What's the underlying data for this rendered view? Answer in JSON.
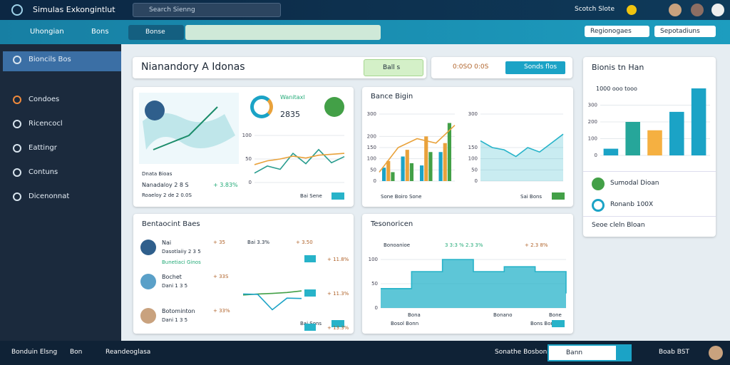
{
  "topbar": {
    "app": "Simulas Exkongintlut",
    "search": "Search Sienng",
    "user": "Scotch Slote"
  },
  "toolbar": {
    "menu": "Uhongian",
    "item": "Bons",
    "tab": "Bonse",
    "buttons": [
      "Regionogaes",
      "Sepotadiuns"
    ]
  },
  "sidebar": {
    "items": [
      "Bioncils Bos",
      "Condoes",
      "Ricencocl",
      "Eattingr",
      "Contuns",
      "Dicenonnat"
    ]
  },
  "header": {
    "title": "Nianandory A Idonas",
    "filter": "Ball s",
    "range": "0:0SO 0:0S",
    "action": "Sonds flos"
  },
  "cards": [
    {
      "title": "Wanitaxl",
      "value": "2835",
      "stat_label": "Dnata Bioas",
      "stat_name": "Nanadaloy 2 8 S",
      "stat_change": "+ 3.83%",
      "stat_sub": "Roaeloy 2 de 2 0.0S",
      "legend": "Bai Sene",
      "chart": {
        "type": "line",
        "ylim": [
          0,
          100
        ],
        "yticks": [
          0,
          50,
          100
        ],
        "series": [
          {
            "color": "#2a9d8f",
            "values": [
              20,
              35,
              28,
              62,
              40,
              70,
              42,
              55
            ]
          },
          {
            "color": "#e9a23b",
            "values": [
              38,
              46,
              50,
              56,
              52,
              58,
              60,
              62
            ]
          }
        ]
      }
    },
    {
      "title": "Bance Bigin",
      "footer": "Sone Boiro Sone",
      "legend": "Sai Bons",
      "chart": {
        "type": "bar",
        "ylim": [
          0,
          300
        ],
        "yticks": [
          0,
          50,
          100,
          150,
          200,
          300
        ],
        "series": [
          {
            "color": "#1ba3c6",
            "values": [
              60,
              110,
              70,
              130
            ]
          },
          {
            "color": "#e9a23b",
            "values": [
              90,
              140,
              200,
              170
            ]
          },
          {
            "color": "#43a047",
            "values": [
              40,
              80,
              130,
              260
            ]
          }
        ],
        "line": {
          "color": "#e9a23b",
          "values": [
            40,
            150,
            190,
            170,
            250
          ]
        }
      },
      "chart2": {
        "type": "area",
        "ylim": [
          0,
          300
        ],
        "yticks": [
          0,
          50,
          100,
          150,
          300
        ],
        "series": [
          {
            "color": "#27b3c9",
            "values": [
              180,
              150,
              140,
              110,
              150,
              130,
              170,
              210
            ]
          }
        ]
      }
    },
    {
      "title": "Bentaocint Baes",
      "legend": "Bai Sons",
      "rows": [
        {
          "name": "Nai",
          "sub": "Dasotlaiiy 2 3 5",
          "note": "Bunetiaci Ginos",
          "a": "+ 35",
          "b": "Bai 3.3%",
          "c": "+ 3.50",
          "d": "+ 11.8%"
        },
        {
          "name": "Bochet",
          "sub": "Dani 1 3 5",
          "a": "+ 33S",
          "d": "+ 11.3%"
        },
        {
          "name": "Botominton",
          "sub": "Dani 1 3 5",
          "a": "+ 33%",
          "d": "+ 13.3%"
        }
      ],
      "chart": {
        "type": "line",
        "ylim": [
          0,
          100
        ],
        "series": [
          {
            "color": "#43a047",
            "values": [
              55,
              58,
              60,
              63,
              68
            ]
          },
          {
            "color": "#1ba3c6",
            "values": [
              58,
              57,
              8,
              45,
              44
            ]
          }
        ]
      }
    },
    {
      "title": "Tesonoricen",
      "key": "Bonoanioe",
      "stat_a": "3 3:3 % 2.3 3%",
      "stat_b": "+ 2.3 8%",
      "labels": [
        "Bona",
        "Bonano",
        "Bone"
      ],
      "footer": "Bosol Bonn",
      "legend": "Bons Bons",
      "chart": {
        "type": "step",
        "ylim": [
          0,
          100
        ],
        "yticks": [
          0,
          50,
          100
        ],
        "series": [
          {
            "color": "#27b3c9",
            "values": [
              40,
              75,
              100,
              75,
              85,
              75,
              30
            ]
          }
        ]
      }
    }
  ],
  "panel": {
    "title": "Bionis tn Han",
    "chart_title": "1000 ooo tooo",
    "chart": {
      "type": "bar",
      "ylim": [
        0,
        400
      ],
      "yticks": [
        0,
        100,
        200,
        300
      ],
      "colors": [
        "#1ba3c6",
        "#26a69a",
        "#f5b041",
        "#1ba3c6",
        "#1ba3c6"
      ],
      "series": [
        {
          "values": [
            40,
            200,
            150,
            260,
            400
          ]
        }
      ]
    },
    "statuses": [
      "Sumodal Dioan",
      "Ronanb 100X"
    ],
    "footer": "Seoe cleln Bloan"
  },
  "footer": {
    "left": [
      "Bonduin Elsng",
      "Bon",
      "Reandeoglasa"
    ],
    "center": "Sonathe Bosbon",
    "search": "Bann",
    "right": "Boab BST"
  }
}
